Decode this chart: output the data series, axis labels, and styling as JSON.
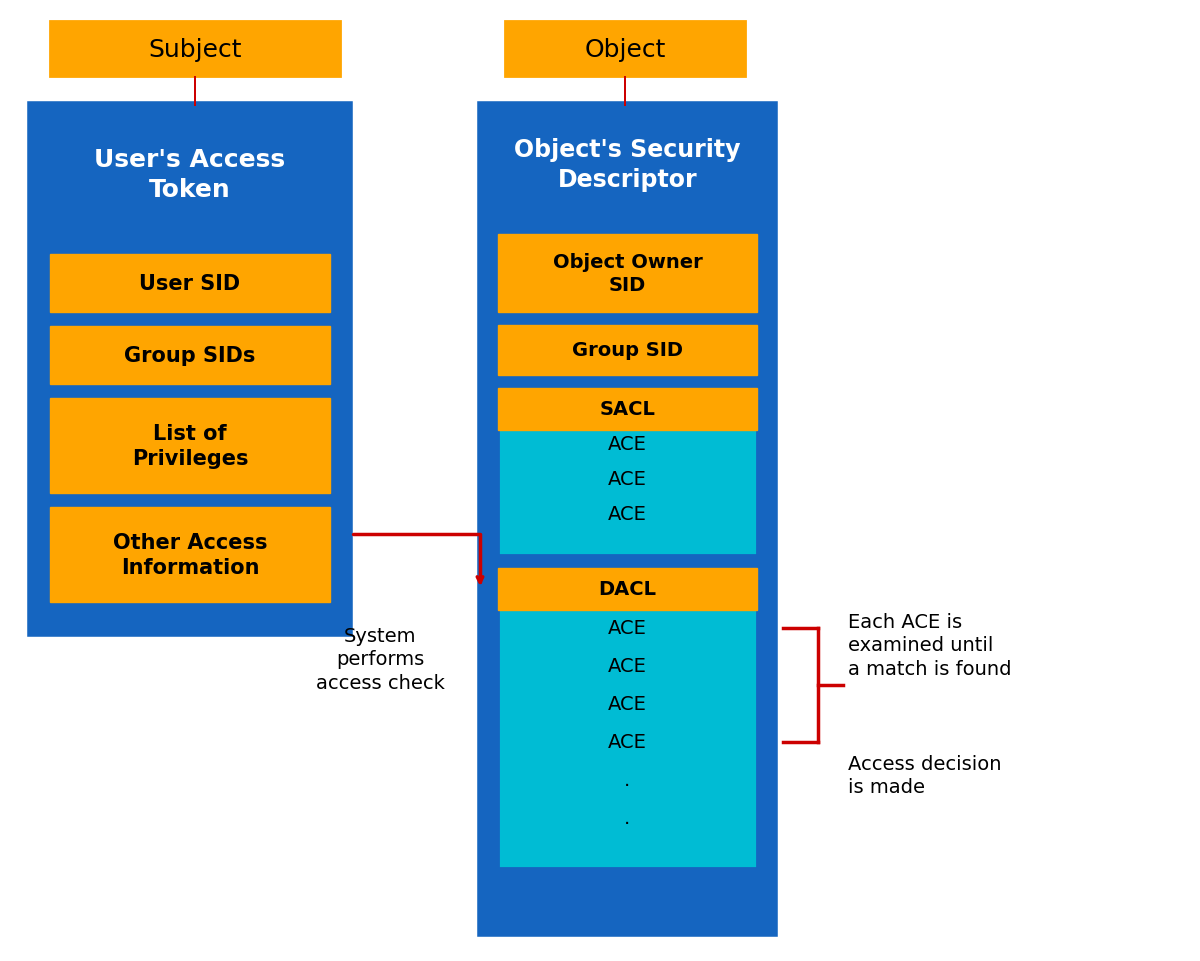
{
  "bg_color": "#ffffff",
  "blue_dark": "#1565C0",
  "blue_light": "#00BCD4",
  "orange": "#FFA500",
  "red": "#CC0000",
  "black": "#000000",
  "subject_label": "Subject",
  "object_label": "Object",
  "left_box_title": "User's Access\nToken",
  "left_items": [
    "User SID",
    "Group SIDs",
    "List of\nPrivileges",
    "Other Access\nInformation"
  ],
  "right_box_title": "Object's Security\nDescriptor",
  "right_top_items": [
    "Object Owner\nSID",
    "Group SID"
  ],
  "sacl_label": "SACL",
  "sacl_aces": [
    "ACE",
    "ACE",
    "ACE"
  ],
  "dacl_label": "DACL",
  "dacl_aces": [
    "ACE",
    "ACE",
    "ACE",
    "ACE",
    ".",
    "."
  ],
  "system_text": "System\nperforms\naccess check",
  "each_ace_text": "Each ACE is\nexamined until\na match is found",
  "access_decision_text": "Access decision\nis made"
}
